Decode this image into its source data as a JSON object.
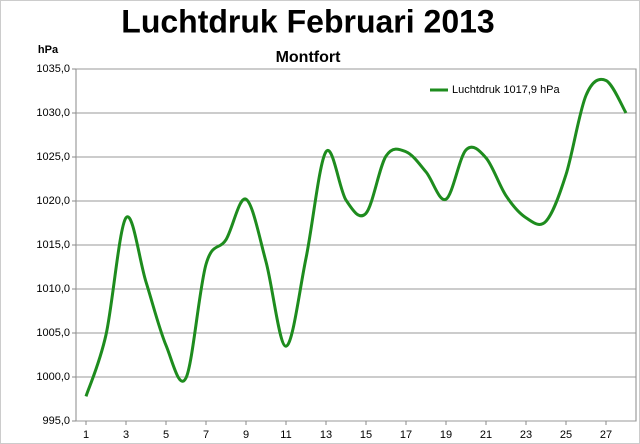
{
  "chart_data": {
    "type": "line",
    "title": "Luchtdruk Februari 2013",
    "subtitle": "Montfort",
    "y_label": "hPa",
    "x": [
      1,
      2,
      3,
      4,
      5,
      6,
      7,
      8,
      9,
      10,
      11,
      12,
      13,
      14,
      15,
      16,
      17,
      18,
      19,
      20,
      21,
      22,
      23,
      24,
      25,
      26,
      27,
      28
    ],
    "series": [
      {
        "name": "Luchtdruk 1017,9 hPa",
        "color": "#1e8c1e",
        "values": [
          997.8,
          1004.8,
          1018.1,
          1010.8,
          1003.6,
          999.9,
          1012.8,
          1015.6,
          1020.2,
          1013.1,
          1003.5,
          1013.5,
          1025.6,
          1020.1,
          1018.6,
          1025.1,
          1025.6,
          1023.3,
          1020.2,
          1025.8,
          1024.9,
          1020.6,
          1018.1,
          1017.7,
          1023.0,
          1032.0,
          1033.7,
          1030.0
        ]
      }
    ],
    "xlim": [
      0.5,
      28.5
    ],
    "xticks": [
      1,
      3,
      5,
      7,
      9,
      11,
      13,
      15,
      17,
      19,
      21,
      23,
      25,
      27
    ],
    "ylim": [
      995,
      1035
    ],
    "yticks": [
      {
        "value": 995,
        "label": "995,0"
      },
      {
        "value": 1000,
        "label": "1000,0"
      },
      {
        "value": 1005,
        "label": "1005,0"
      },
      {
        "value": 1010,
        "label": "1010,0"
      },
      {
        "value": 1015,
        "label": "1015,0"
      },
      {
        "value": 1020,
        "label": "1020,0"
      },
      {
        "value": 1025,
        "label": "1025,0"
      },
      {
        "value": 1030,
        "label": "1030,0"
      },
      {
        "value": 1035,
        "label": "1035,0"
      }
    ],
    "grid": true,
    "legend": "top-right"
  }
}
